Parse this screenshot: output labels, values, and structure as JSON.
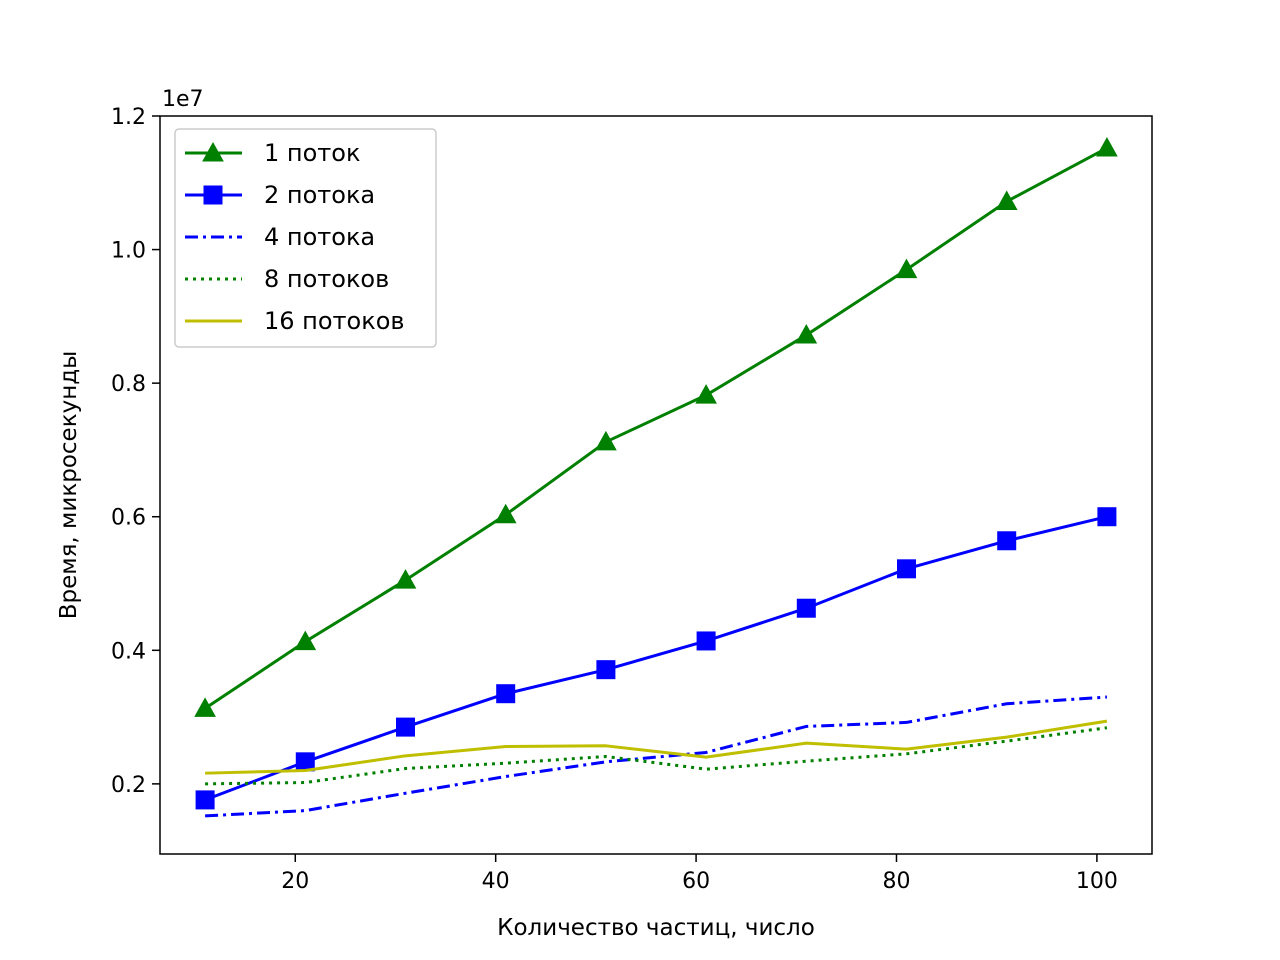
{
  "chart_data": {
    "type": "line",
    "title": "",
    "xlabel": "Количество частиц, число",
    "ylabel": "Время, микросекунды",
    "y_offset_label": "1e7",
    "y_scale": 10000000,
    "xlim": [
      6.5,
      105.5
    ],
    "ylim": [
      0.095,
      1.2
    ],
    "x_ticks": [
      20,
      40,
      60,
      80,
      100
    ],
    "y_ticks": [
      0.2,
      0.4,
      0.6,
      0.8,
      1.0,
      1.2
    ],
    "y_tick_labels": [
      "0.2",
      "0.4",
      "0.6",
      "0.8",
      "1.0",
      "1.2"
    ],
    "x_tick_labels": [
      "20",
      "40",
      "60",
      "80",
      "100"
    ],
    "grid": false,
    "legend_position": "top-left",
    "x": [
      11,
      21,
      31,
      41,
      51,
      61,
      71,
      81,
      91,
      101
    ],
    "series": [
      {
        "name": "1 поток",
        "color": "#008000",
        "style": "solid",
        "marker": "triangle",
        "values": [
          0.313,
          0.413,
          0.505,
          0.603,
          0.712,
          0.782,
          0.872,
          0.97,
          1.072,
          1.152
        ]
      },
      {
        "name": "2 потока",
        "color": "#0000ff",
        "style": "solid",
        "marker": "square",
        "values": [
          0.176,
          0.233,
          0.285,
          0.335,
          0.371,
          0.414,
          0.463,
          0.522,
          0.564,
          0.6
        ]
      },
      {
        "name": "4 потока",
        "color": "#0000ff",
        "style": "dashdot",
        "marker": "none",
        "values": [
          0.152,
          0.16,
          0.186,
          0.211,
          0.233,
          0.247,
          0.286,
          0.292,
          0.32,
          0.33
        ]
      },
      {
        "name": "8 потоков",
        "color": "#008000",
        "style": "dotted",
        "marker": "none",
        "values": [
          0.2,
          0.202,
          0.223,
          0.231,
          0.241,
          0.222,
          0.234,
          0.245,
          0.264,
          0.284
        ]
      },
      {
        "name": "16 потоков",
        "color": "#bfbf00",
        "style": "solid",
        "marker": "none",
        "values": [
          0.216,
          0.22,
          0.242,
          0.256,
          0.257,
          0.24,
          0.261,
          0.252,
          0.27,
          0.294
        ]
      }
    ]
  }
}
